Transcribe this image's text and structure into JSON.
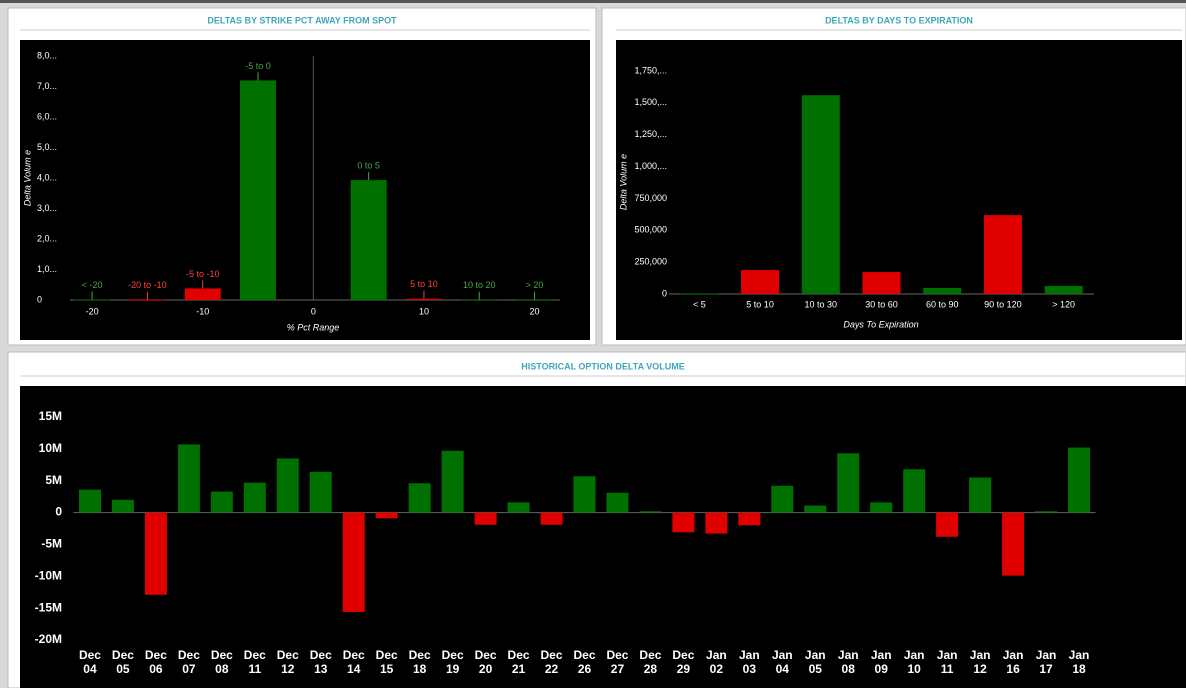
{
  "chart_data": [
    {
      "type": "bar",
      "title": "DELTAS BY STRIKE PCT AWAY FROM SPOT",
      "y_label": "Delta Volum e",
      "x_label": "% Pct Range",
      "x": [
        -20,
        -15,
        -10,
        -5,
        5,
        10,
        15,
        20
      ],
      "labels": [
        "< -20",
        "-20 to -10",
        "-5 to -10",
        "-5 to 0",
        "0 to 5",
        "5 to 10",
        "10 to 20",
        "> 20"
      ],
      "values": [
        20000,
        10000,
        380000,
        7200000,
        3930000,
        40000,
        10000,
        10000
      ],
      "colors": [
        "#007000",
        "#e00000",
        "#e00000",
        "#007000",
        "#007000",
        "#e00000",
        "#007000",
        "#007000"
      ],
      "label_colors": [
        "#45a845",
        "#ff4040",
        "#ff4040",
        "#45a845",
        "#45a845",
        "#ff4040",
        "#45a845",
        "#45a845"
      ],
      "xlim": [
        -22,
        22.3
      ],
      "xticks": [
        -20,
        -10,
        0,
        10,
        20
      ],
      "ylim": [
        0,
        8000000
      ],
      "yticks": [
        0,
        {
          "value": 1000000,
          "label": "1,0..."
        },
        {
          "value": 2000000,
          "label": "2,0..."
        },
        {
          "value": 3000000,
          "label": "3,0..."
        },
        {
          "value": 4000000,
          "label": "4,0..."
        },
        {
          "value": 5000000,
          "label": "5,0..."
        },
        {
          "value": 6000000,
          "label": "6,0..."
        },
        {
          "value": 7000000,
          "label": "7,0..."
        },
        {
          "value": 8000000,
          "label": "8,0..."
        }
      ]
    },
    {
      "type": "bar",
      "title": "DELTAS BY DAYS TO EXPIRATION",
      "y_label": "Delta Volum e",
      "x_label": "Days To Expiration",
      "categories": [
        "< 5",
        "5 to 10",
        "10 to 30",
        "30 to 60",
        "60 to 90",
        "90 to 120",
        "> 120"
      ],
      "values": [
        3000,
        188000,
        1560000,
        172000,
        47000,
        619000,
        63000
      ],
      "colors": [
        "#007000",
        "#e00000",
        "#007000",
        "#e00000",
        "#007000",
        "#e00000",
        "#007000"
      ],
      "ylim": [
        0,
        1750000
      ],
      "yticks": [
        0,
        {
          "value": 250000,
          "label": "250,000"
        },
        {
          "value": 500000,
          "label": "500,000"
        },
        {
          "value": 750000,
          "label": "750,000"
        },
        {
          "value": 1000000,
          "label": "1,000,..."
        },
        {
          "value": 1250000,
          "label": "1,250,..."
        },
        {
          "value": 1500000,
          "label": "1,500,..."
        },
        {
          "value": 1750000,
          "label": "1,750,..."
        }
      ]
    },
    {
      "type": "bar",
      "title": "HISTORICAL OPTION DELTA VOLUME",
      "categories": [
        "Dec 04",
        "Dec 05",
        "Dec 06",
        "Dec 07",
        "Dec 08",
        "Dec 11",
        "Dec 12",
        "Dec 13",
        "Dec 14",
        "Dec 15",
        "Dec 18",
        "Dec 19",
        "Dec 20",
        "Dec 21",
        "Dec 22",
        "Dec 26",
        "Dec 27",
        "Dec 28",
        "Dec 29",
        "Jan 02",
        "Jan 03",
        "Jan 04",
        "Jan 05",
        "Jan 08",
        "Jan 09",
        "Jan 10",
        "Jan 11",
        "Jan 12",
        "Jan 16",
        "Jan 17",
        "Jan 18"
      ],
      "values": [
        3600000,
        2000000,
        -12900000,
        10700000,
        3300000,
        4700000,
        8500000,
        6400000,
        -15600000,
        -900000,
        4600000,
        9700000,
        -1900000,
        1600000,
        -1900000,
        5700000,
        3100000,
        200000,
        -3100000,
        -3300000,
        -2000000,
        4200000,
        1100000,
        9300000,
        1600000,
        6800000,
        -3800000,
        5500000,
        -9900000,
        200000,
        10200000
      ],
      "colors": [
        "#007000",
        "#007000",
        "#e00000",
        "#007000",
        "#007000",
        "#007000",
        "#007000",
        "#007000",
        "#e00000",
        "#e00000",
        "#007000",
        "#007000",
        "#e00000",
        "#007000",
        "#e00000",
        "#007000",
        "#007000",
        "#007000",
        "#e00000",
        "#e00000",
        "#e00000",
        "#007000",
        "#007000",
        "#007000",
        "#007000",
        "#007000",
        "#e00000",
        "#007000",
        "#e00000",
        "#007000",
        "#007000"
      ],
      "ylim": [
        -20000000,
        15000000
      ],
      "yticks": [
        {
          "value": -20000000,
          "label": "-20M"
        },
        {
          "value": -15000000,
          "label": "-15M"
        },
        {
          "value": -10000000,
          "label": "-10M"
        },
        {
          "value": -5000000,
          "label": "-5M"
        },
        0,
        {
          "value": 5000000,
          "label": "5M"
        },
        {
          "value": 10000000,
          "label": "10M"
        },
        {
          "value": 15000000,
          "label": "15M"
        }
      ]
    }
  ]
}
